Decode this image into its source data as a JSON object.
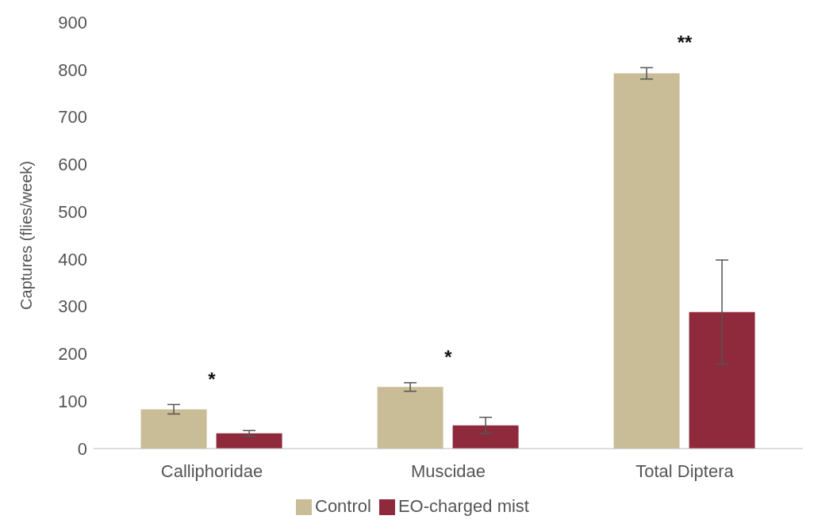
{
  "chart_data": {
    "type": "bar",
    "ylabel": "Captures (flies/week)",
    "categories": [
      "Calliphoridae",
      "Muscidae",
      "Total Diptera"
    ],
    "series": [
      {
        "name": "Control",
        "color": "#c8bd96",
        "values": [
          83,
          130,
          792
        ],
        "errors": [
          10,
          9,
          12
        ]
      },
      {
        "name": "EO-charged mist",
        "color": "#8f2a3d",
        "values": [
          32,
          49,
          288
        ],
        "errors": [
          6,
          17,
          110
        ]
      }
    ],
    "ylim": [
      0,
      900
    ],
    "yticks": [
      0,
      100,
      200,
      300,
      400,
      500,
      600,
      700,
      800,
      900
    ],
    "grid": false,
    "legend": "bottom",
    "annotations": [
      "*",
      "*",
      "**"
    ]
  }
}
